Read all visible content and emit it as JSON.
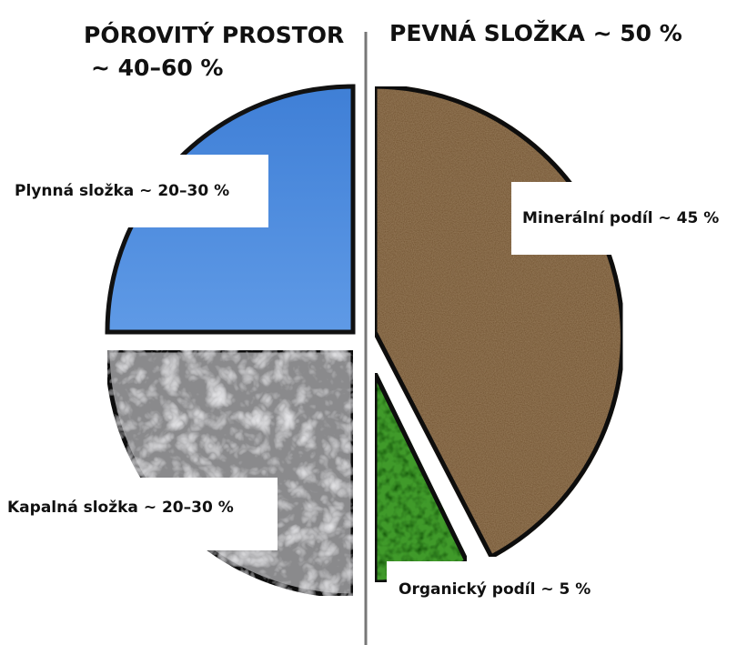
{
  "headings": {
    "left": {
      "line1": "PÓROVITÝ PROSTOR",
      "line2": "~ 40–60 %"
    },
    "right": "PEVNÁ SLOŽKA ~ 50 %"
  },
  "segments": [
    {
      "label": "Plynná složka ~ 20–30 %"
    },
    {
      "label": "Kapalná složka ~ 20–30 %"
    },
    {
      "label": "Minerální podíl ~ 45 %"
    },
    {
      "label": "Organický podíl ~ 5 %"
    }
  ]
}
